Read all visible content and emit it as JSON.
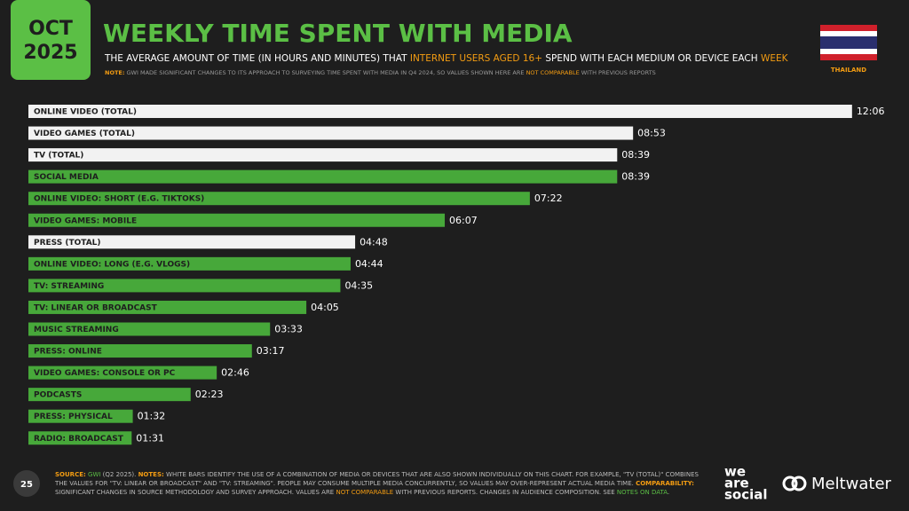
{
  "header": {
    "date": [
      "OCT",
      "2025"
    ],
    "title": "WEEKLY TIME SPENT WITH MEDIA",
    "subtitle": [
      "THE AVERAGE AMOUNT OF TIME (IN HOURS AND MINUTES) THAT ",
      "INTERNET USERS AGED 16+",
      " SPEND WITH EACH MEDIUM OR DEVICE EACH ",
      "WEEK"
    ],
    "note": [
      "NOTE:",
      " GWI MADE SIGNIFICANT CHANGES TO ITS APPROACH TO SURVEYING TIME SPENT WITH MEDIA IN Q4 2024, SO VALUES SHOWN HERE ARE ",
      "NOT COMPARABLE",
      " WITH PREVIOUS REPORTS"
    ],
    "country": "THAILAND"
  },
  "chart_data": {
    "type": "bar",
    "orientation": "horizontal",
    "categories": [
      "ONLINE VIDEO (TOTAL)",
      "VIDEO GAMES (TOTAL)",
      "TV (TOTAL)",
      "SOCIAL MEDIA",
      "ONLINE VIDEO: SHORT (E.G. TIKTOKS)",
      "VIDEO GAMES: MOBILE",
      "PRESS (TOTAL)",
      "ONLINE VIDEO: LONG (E.G. VLOGS)",
      "TV: STREAMING",
      "TV: LINEAR OR BROADCAST",
      "MUSIC STREAMING",
      "PRESS: ONLINE",
      "VIDEO GAMES: CONSOLE OR PC",
      "PODCASTS",
      "PRESS: PHYSICAL",
      "RADIO: BROADCAST"
    ],
    "values": [
      726,
      533,
      519,
      519,
      442,
      367,
      288,
      284,
      275,
      245,
      213,
      197,
      166,
      143,
      92,
      91
    ],
    "value_labels": [
      "12:06",
      "08:53",
      "08:39",
      "08:39",
      "07:22",
      "06:07",
      "04:48",
      "04:44",
      "04:35",
      "04:05",
      "03:33",
      "03:17",
      "02:46",
      "02:23",
      "01:32",
      "01:31"
    ],
    "colors": [
      "#f2f2f2",
      "#f2f2f2",
      "#f2f2f2",
      "#47a83a",
      "#47a83a",
      "#47a83a",
      "#f2f2f2",
      "#47a83a",
      "#47a83a",
      "#47a83a",
      "#47a83a",
      "#47a83a",
      "#47a83a",
      "#47a83a",
      "#47a83a",
      "#47a83a"
    ]
  },
  "footer": {
    "page": "25",
    "source": [
      "SOURCE:",
      " GWI",
      " (Q2 2025). ",
      "NOTES:",
      " WHITE BARS IDENTIFY THE USE OF A COMBINATION OF MEDIA OR DEVICES THAT ARE ALSO SHOWN INDIVIDUALLY ON THIS CHART. FOR EXAMPLE, \"TV (TOTAL)\" COMBINES THE VALUES FOR \"TV: LINEAR OR BROADCAST\" AND \"TV: STREAMING\". PEOPLE MAY CONSUME MULTIPLE MEDIA CONCURRENTLY, SO VALUES MAY OVER-REPRESENT ACTUAL MEDIA TIME. ",
      "COMPARABILITY:",
      " SIGNIFICANT CHANGES IN SOURCE METHODOLOGY AND SURVEY APPROACH. VALUES ARE ",
      "NOT COMPARABLE",
      " WITH PREVIOUS REPORTS. CHANGES IN AUDIENCE COMPOSITION. SEE ",
      "NOTES ON DATA",
      "."
    ],
    "logos": [
      "we",
      "are",
      "social",
      "Meltwater"
    ]
  }
}
